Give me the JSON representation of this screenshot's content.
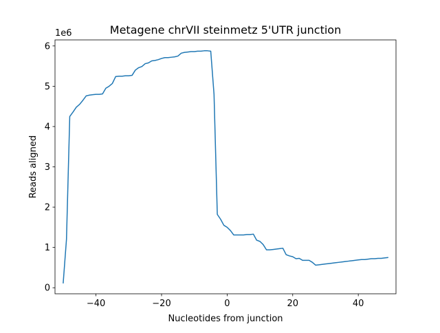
{
  "chart_data": {
    "type": "line",
    "title": "Metagene chrVII steinmetz 5'UTR junction",
    "xlabel": "Nucleotides from junction",
    "ylabel": "Reads aligned",
    "y_offset_label": "1e6",
    "xlim": [
      -52.5,
      51.5
    ],
    "ylim": [
      -0.15,
      6.15
    ],
    "x_ticks": [
      -40,
      -20,
      0,
      20,
      40
    ],
    "x_tick_labels": [
      "−40",
      "−20",
      "0",
      "20",
      "40"
    ],
    "y_ticks": [
      0,
      1,
      2,
      3,
      4,
      5,
      6
    ],
    "y_tick_labels": [
      "0",
      "1",
      "2",
      "3",
      "4",
      "5",
      "6"
    ],
    "grid": false,
    "series": [
      {
        "name": "Reads aligned",
        "color": "#1f77b4",
        "x": [
          -50,
          -49,
          -48,
          -47,
          -46,
          -45,
          -44,
          -43,
          -42,
          -41,
          -40,
          -39,
          -38,
          -37,
          -36,
          -35,
          -34,
          -33,
          -32,
          -31,
          -30,
          -29,
          -28,
          -27,
          -26,
          -25,
          -24,
          -23,
          -22,
          -21,
          -20,
          -19,
          -18,
          -17,
          -16,
          -15,
          -14,
          -13,
          -12,
          -11,
          -10,
          -9,
          -8,
          -7,
          -6,
          -5,
          -4,
          -3,
          -2,
          -1,
          0,
          1,
          2,
          3,
          4,
          5,
          6,
          7,
          8,
          9,
          10,
          11,
          12,
          13,
          14,
          15,
          16,
          17,
          18,
          19,
          20,
          21,
          22,
          23,
          24,
          25,
          26,
          27,
          28,
          29,
          30,
          31,
          32,
          33,
          34,
          35,
          36,
          37,
          38,
          39,
          40,
          41,
          42,
          43,
          44,
          45,
          46,
          47,
          48,
          49
        ],
        "values": [
          0.12,
          1.2,
          4.25,
          4.36,
          4.48,
          4.55,
          4.65,
          4.76,
          4.78,
          4.79,
          4.8,
          4.8,
          4.81,
          4.95,
          5.0,
          5.07,
          5.24,
          5.25,
          5.25,
          5.26,
          5.26,
          5.27,
          5.4,
          5.46,
          5.49,
          5.56,
          5.58,
          5.63,
          5.64,
          5.66,
          5.69,
          5.71,
          5.71,
          5.72,
          5.73,
          5.75,
          5.82,
          5.84,
          5.85,
          5.86,
          5.86,
          5.87,
          5.87,
          5.88,
          5.88,
          5.87,
          4.8,
          1.82,
          1.7,
          1.55,
          1.5,
          1.42,
          1.31,
          1.31,
          1.31,
          1.31,
          1.32,
          1.32,
          1.33,
          1.18,
          1.15,
          1.07,
          0.94,
          0.94,
          0.95,
          0.96,
          0.97,
          0.98,
          0.82,
          0.79,
          0.77,
          0.72,
          0.73,
          0.68,
          0.68,
          0.68,
          0.63,
          0.56,
          0.57,
          0.58,
          0.59,
          0.6,
          0.61,
          0.62,
          0.63,
          0.64,
          0.65,
          0.66,
          0.67,
          0.68,
          0.69,
          0.7,
          0.7,
          0.71,
          0.72,
          0.72,
          0.73,
          0.73,
          0.74,
          0.75
        ]
      }
    ]
  }
}
